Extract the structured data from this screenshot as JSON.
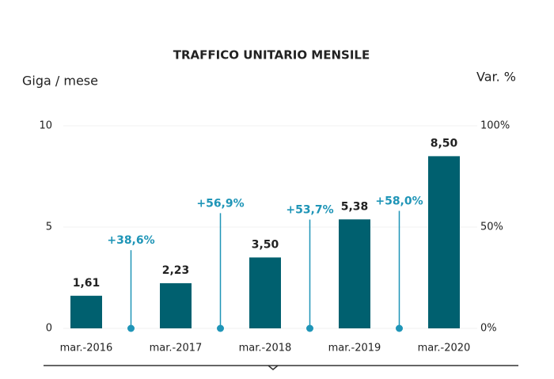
{
  "chart_data": {
    "type": "bar",
    "title": "TRAFFICO UNITARIO MENSILE",
    "y_label": "Giga / mese",
    "y2_label": "Var. %",
    "categories": [
      "mar.-2016",
      "mar.-2017",
      "mar.-2018",
      "mar.-2019",
      "mar.-2020"
    ],
    "series": [
      {
        "name": "Giga / mese",
        "color": "#00606f",
        "values": [
          1.61,
          2.23,
          3.5,
          5.38,
          8.5
        ],
        "value_labels": [
          "1,61",
          "2,23",
          "3,50",
          "5,38",
          "8,50"
        ]
      },
      {
        "name": "Var. %",
        "color": "#1f95b7",
        "axis": "y2",
        "values": [
          null,
          38.6,
          56.9,
          53.7,
          58.0
        ],
        "value_labels": [
          null,
          "+38,6%",
          "+56,9%",
          "+53,7%",
          "+58,0%"
        ]
      }
    ],
    "ylim": [
      0,
      10
    ],
    "yticks": [
      0,
      5,
      10
    ],
    "y2lim": [
      0,
      100
    ],
    "y2ticks": [
      {
        "value": 0,
        "label": "0%"
      },
      {
        "value": 50,
        "label": "50%"
      },
      {
        "value": 100,
        "label": "100%"
      }
    ],
    "grid": true
  }
}
